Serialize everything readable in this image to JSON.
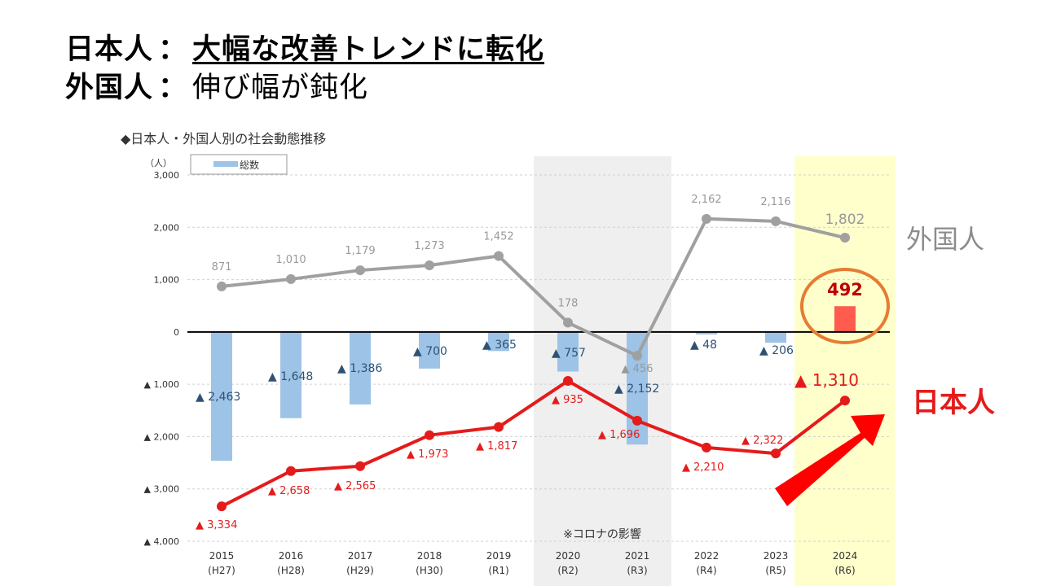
{
  "headline": {
    "line1_label": "日本人",
    "line1_sep": "：",
    "line1_text": "大幅な改善トレンドに転化",
    "line2_label": "外国人",
    "line2_sep": "：",
    "line2_text": "伸び幅が鈍化"
  },
  "chart_data": {
    "type": "bar+line",
    "title": "◆日本人・外国人別の社会動態推移",
    "unit_label": "（人）",
    "legend": "総数",
    "ylim": [
      -4000,
      3000
    ],
    "y_ticks": [
      3000,
      2000,
      1000,
      0,
      -1000,
      -2000,
      -3000,
      -4000
    ],
    "y_tick_labels": [
      "3,000",
      "2,000",
      "1,000",
      "0",
      "▲ 1,000",
      "▲ 2,000",
      "▲ 3,000",
      "▲ 4,000"
    ],
    "categories": [
      "2015",
      "2016",
      "2017",
      "2018",
      "2019",
      "2020",
      "2021",
      "2022",
      "2023",
      "2024"
    ],
    "category_sublabels": [
      "(H27)",
      "(H28)",
      "(H29)",
      "(H30)",
      "(R1)",
      "(R2)",
      "(R3)",
      "(R4)",
      "(R5)",
      "(R6)"
    ],
    "series": [
      {
        "name": "総数",
        "kind": "bar",
        "values": [
          -2463,
          -1648,
          -1386,
          -700,
          -365,
          -757,
          -2152,
          -48,
          -206,
          492
        ],
        "labels": [
          "▲ 2,463",
          "▲ 1,648",
          "▲ 1,386",
          "▲ 700",
          "▲ 365",
          "▲ 757",
          "▲ 2,152",
          "▲ 48",
          "▲ 206",
          "492"
        ]
      },
      {
        "name": "外国人",
        "kind": "line",
        "values": [
          871,
          1010,
          1179,
          1273,
          1452,
          178,
          -456,
          2162,
          2116,
          1802
        ],
        "labels": [
          "871",
          "1,010",
          "1,179",
          "1,273",
          "1,452",
          "178",
          "▲ 456",
          "2,162",
          "2,116",
          "1,802"
        ]
      },
      {
        "name": "日本人",
        "kind": "line",
        "values": [
          -3334,
          -2658,
          -2565,
          -1973,
          -1817,
          -935,
          -1696,
          -2210,
          -2322,
          -1310
        ],
        "labels": [
          "▲ 3,334",
          "▲ 2,658",
          "▲ 2,565",
          "▲ 1,973",
          "▲ 1,817",
          "▲ 935",
          "▲ 1,696",
          "▲ 2,210",
          "▲ 2,322",
          "▲ 1,310"
        ]
      }
    ],
    "series_labels": {
      "foreign": "外国人",
      "japanese": "日本人"
    },
    "annotation": "※コロナの影響",
    "colors": {
      "bar": "#9dc3e6",
      "bar_highlight": "#ff5b4f",
      "foreign_line": "#a0a0a0",
      "japanese_line": "#e51b1b",
      "highlight_band": "#ffffcc",
      "covid_band": "#efefef",
      "circle": "#e67c32",
      "arrow": "#ff0000"
    }
  }
}
